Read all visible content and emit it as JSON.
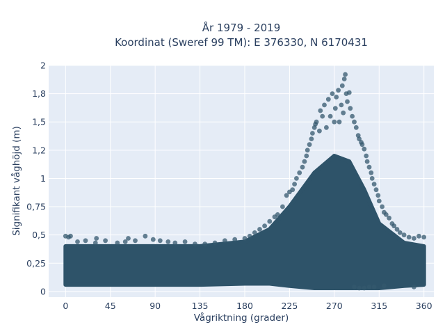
{
  "chart_data": {
    "type": "scatter",
    "title_line1": "År 1979 - 2019",
    "title_line2": "Koordinat (Sweref 99 TM): E 376330, N 6170431",
    "xlabel": "Vågriktning (grader)",
    "ylabel": "Signifikant våghöjd (m)",
    "xlim": [
      -17,
      370
    ],
    "ylim": [
      -0.05,
      2.0
    ],
    "x_ticks": [
      {
        "value": 0,
        "label": "0"
      },
      {
        "value": 45,
        "label": "45"
      },
      {
        "value": 90,
        "label": "90"
      },
      {
        "value": 135,
        "label": "135"
      },
      {
        "value": 180,
        "label": "180"
      },
      {
        "value": 225,
        "label": "225"
      },
      {
        "value": 270,
        "label": "270"
      },
      {
        "value": 315,
        "label": "315"
      },
      {
        "value": 360,
        "label": "360"
      }
    ],
    "y_ticks": [
      {
        "value": 0,
        "label": "0"
      },
      {
        "value": 0.25,
        "label": "0,25"
      },
      {
        "value": 0.5,
        "label": "0,5"
      },
      {
        "value": 0.75,
        "label": "0,75"
      },
      {
        "value": 1,
        "label": "1"
      },
      {
        "value": 1.25,
        "label": "1,2"
      },
      {
        "value": 1.5,
        "label": "1,5"
      },
      {
        "value": 1.75,
        "label": "1,8"
      },
      {
        "value": 2,
        "label": "2"
      }
    ],
    "grid": true,
    "marker_color": "#34586e",
    "band_color": "#2e5369",
    "plot_background": "#e5ecf6",
    "band_profile": [
      {
        "x": 0,
        "upper": 0.4,
        "lower": 0.06
      },
      {
        "x": 45,
        "upper": 0.4,
        "lower": 0.06
      },
      {
        "x": 90,
        "upper": 0.4,
        "lower": 0.06
      },
      {
        "x": 135,
        "upper": 0.4,
        "lower": 0.06
      },
      {
        "x": 180,
        "upper": 0.44,
        "lower": 0.07
      },
      {
        "x": 205,
        "upper": 0.55,
        "lower": 0.07
      },
      {
        "x": 225,
        "upper": 0.75,
        "lower": 0.05
      },
      {
        "x": 250,
        "upper": 1.05,
        "lower": 0.03
      },
      {
        "x": 270,
        "upper": 1.2,
        "lower": 0.03
      },
      {
        "x": 285,
        "upper": 1.15,
        "lower": 0.03
      },
      {
        "x": 300,
        "upper": 0.9,
        "lower": 0.03
      },
      {
        "x": 315,
        "upper": 0.6,
        "lower": 0.03
      },
      {
        "x": 340,
        "upper": 0.43,
        "lower": 0.05
      },
      {
        "x": 360,
        "upper": 0.4,
        "lower": 0.06
      }
    ],
    "points": [
      [
        0,
        0.49
      ],
      [
        3,
        0.48
      ],
      [
        5,
        0.49
      ],
      [
        12,
        0.44
      ],
      [
        20,
        0.45
      ],
      [
        30,
        0.43
      ],
      [
        31,
        0.47
      ],
      [
        40,
        0.45
      ],
      [
        52,
        0.43
      ],
      [
        60,
        0.44
      ],
      [
        63,
        0.47
      ],
      [
        70,
        0.45
      ],
      [
        80,
        0.49
      ],
      [
        88,
        0.46
      ],
      [
        95,
        0.45
      ],
      [
        103,
        0.44
      ],
      [
        110,
        0.43
      ],
      [
        120,
        0.44
      ],
      [
        130,
        0.42
      ],
      [
        140,
        0.42
      ],
      [
        150,
        0.43
      ],
      [
        160,
        0.45
      ],
      [
        170,
        0.46
      ],
      [
        180,
        0.47
      ],
      [
        185,
        0.49
      ],
      [
        190,
        0.52
      ],
      [
        195,
        0.55
      ],
      [
        200,
        0.58
      ],
      [
        205,
        0.62
      ],
      [
        210,
        0.66
      ],
      [
        213,
        0.68
      ],
      [
        218,
        0.75
      ],
      [
        222,
        0.85
      ],
      [
        225,
        0.88
      ],
      [
        228,
        0.9
      ],
      [
        230,
        0.95
      ],
      [
        232,
        1.0
      ],
      [
        235,
        1.05
      ],
      [
        238,
        1.1
      ],
      [
        240,
        1.15
      ],
      [
        242,
        1.2
      ],
      [
        243,
        1.25
      ],
      [
        245,
        1.3
      ],
      [
        247,
        1.35
      ],
      [
        248,
        1.4
      ],
      [
        250,
        1.45
      ],
      [
        251,
        1.48
      ],
      [
        252,
        1.5
      ],
      [
        255,
        1.42
      ],
      [
        256,
        1.6
      ],
      [
        258,
        1.55
      ],
      [
        260,
        1.65
      ],
      [
        262,
        1.45
      ],
      [
        264,
        1.7
      ],
      [
        266,
        1.55
      ],
      [
        268,
        1.75
      ],
      [
        270,
        1.5
      ],
      [
        271,
        1.62
      ],
      [
        272,
        1.72
      ],
      [
        274,
        1.78
      ],
      [
        275,
        1.5
      ],
      [
        277,
        1.65
      ],
      [
        278,
        1.82
      ],
      [
        279,
        1.58
      ],
      [
        280,
        1.88
      ],
      [
        281,
        1.92
      ],
      [
        282,
        1.75
      ],
      [
        283,
        1.68
      ],
      [
        285,
        1.76
      ],
      [
        286,
        1.62
      ],
      [
        288,
        1.55
      ],
      [
        290,
        1.5
      ],
      [
        292,
        1.45
      ],
      [
        294,
        1.38
      ],
      [
        295,
        1.35
      ],
      [
        297,
        1.32
      ],
      [
        298,
        1.3
      ],
      [
        300,
        1.26
      ],
      [
        302,
        1.2
      ],
      [
        303,
        1.15
      ],
      [
        305,
        1.1
      ],
      [
        307,
        1.05
      ],
      [
        308,
        1.0
      ],
      [
        310,
        0.95
      ],
      [
        312,
        0.9
      ],
      [
        314,
        0.85
      ],
      [
        315,
        0.8
      ],
      [
        318,
        0.75
      ],
      [
        320,
        0.7
      ],
      [
        322,
        0.68
      ],
      [
        325,
        0.65
      ],
      [
        328,
        0.6
      ],
      [
        330,
        0.58
      ],
      [
        333,
        0.55
      ],
      [
        336,
        0.52
      ],
      [
        340,
        0.5
      ],
      [
        345,
        0.48
      ],
      [
        350,
        0.47
      ],
      [
        355,
        0.49
      ],
      [
        360,
        0.48
      ],
      [
        290,
        0.04
      ],
      [
        300,
        0.03
      ],
      [
        310,
        0.04
      ],
      [
        320,
        0.05
      ],
      [
        295,
        0.03
      ],
      [
        305,
        0.04
      ],
      [
        350,
        0.04
      ]
    ]
  }
}
